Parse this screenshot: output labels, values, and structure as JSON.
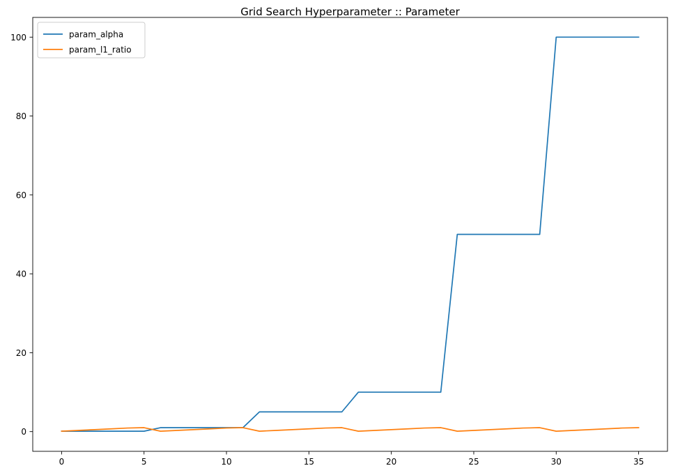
{
  "chart_data": {
    "type": "line",
    "title": "Grid Search Hyperparameter :: Parameter",
    "xlabel": "",
    "ylabel": "",
    "xlim": [
      -1.75,
      36.75
    ],
    "ylim": [
      -5.0,
      105.0
    ],
    "x_ticks": [
      0,
      5,
      10,
      15,
      20,
      25,
      30,
      35
    ],
    "y_ticks": [
      0,
      20,
      40,
      60,
      80,
      100
    ],
    "grid": false,
    "legend_position": "top-left",
    "x": [
      0,
      1,
      2,
      3,
      4,
      5,
      6,
      7,
      8,
      9,
      10,
      11,
      12,
      13,
      14,
      15,
      16,
      17,
      18,
      19,
      20,
      21,
      22,
      23,
      24,
      25,
      26,
      27,
      28,
      29,
      30,
      31,
      32,
      33,
      34,
      35
    ],
    "series": [
      {
        "name": "param_alpha",
        "color": "#1f77b4",
        "values": [
          0.1,
          0.1,
          0.1,
          0.1,
          0.1,
          0.1,
          1,
          1,
          1,
          1,
          1,
          1,
          5,
          5,
          5,
          5,
          5,
          5,
          10,
          10,
          10,
          10,
          10,
          10,
          50,
          50,
          50,
          50,
          50,
          50,
          100,
          100,
          100,
          100,
          100,
          100
        ]
      },
      {
        "name": "param_l1_ratio",
        "color": "#ff7f0e",
        "values": [
          0.1,
          0.3,
          0.5,
          0.7,
          0.9,
          1,
          0.1,
          0.3,
          0.5,
          0.7,
          0.9,
          1,
          0.1,
          0.3,
          0.5,
          0.7,
          0.9,
          1,
          0.1,
          0.3,
          0.5,
          0.7,
          0.9,
          1,
          0.1,
          0.3,
          0.5,
          0.7,
          0.9,
          1,
          0.1,
          0.3,
          0.5,
          0.7,
          0.9,
          1
        ]
      }
    ]
  }
}
